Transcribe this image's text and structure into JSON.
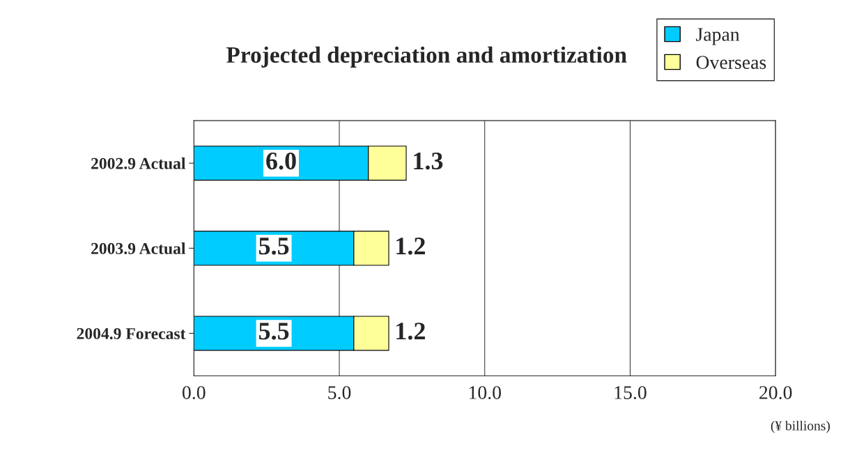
{
  "chart_data": {
    "type": "bar",
    "orientation": "horizontal",
    "stacked": true,
    "title": "Projected depreciation and amortization",
    "categories": [
      "2002.9 Actual",
      "2003.9 Actual",
      "2004.9 Forecast"
    ],
    "series": [
      {
        "name": "Japan",
        "color": "#00ccff",
        "values": [
          6.0,
          5.5,
          5.5
        ],
        "value_labels": [
          "6.0",
          "5.5",
          "5.5"
        ]
      },
      {
        "name": "Overseas",
        "color": "#ffff99",
        "values": [
          1.3,
          1.2,
          1.2
        ],
        "value_labels": [
          "1.3",
          "1.2",
          "1.2"
        ]
      }
    ],
    "xlim": [
      0,
      20
    ],
    "xticks": [
      {
        "value": 0,
        "label": "0.0"
      },
      {
        "value": 5,
        "label": "5.0"
      },
      {
        "value": 10,
        "label": "10.0"
      },
      {
        "value": 15,
        "label": "15.0"
      },
      {
        "value": 20,
        "label": "20.0"
      }
    ],
    "grid": "x",
    "legend": "top right",
    "annotations": [
      "(¥ billions)"
    ]
  }
}
